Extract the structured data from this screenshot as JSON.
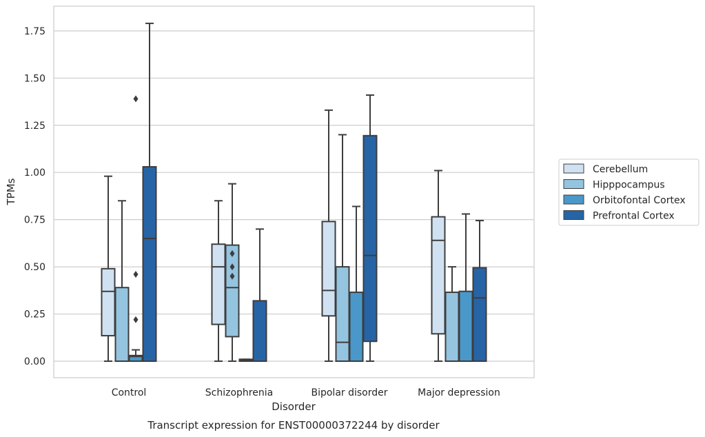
{
  "chart_data": {
    "type": "box",
    "caption": "Transcript expression for ENST00000372244 by disorder",
    "xlabel": "Disorder",
    "ylabel": "TPMs",
    "ylim": [
      -0.085,
      1.88
    ],
    "yticks": [
      0.0,
      0.25,
      0.5,
      0.75,
      1.0,
      1.25,
      1.5,
      1.75
    ],
    "ytick_labels": [
      "0.00",
      "0.25",
      "0.50",
      "0.75",
      "1.00",
      "1.25",
      "1.50",
      "1.75"
    ],
    "grid": "horizontal",
    "legend_position": "right, outside",
    "categories": [
      "Control",
      "Schizophrenia",
      "Bipolar disorder",
      "Major depression"
    ],
    "series": [
      {
        "name": "Cerebellum",
        "color": "#d0e1f2",
        "boxes": [
          {
            "whislo": 0.0,
            "q1": 0.135,
            "med": 0.37,
            "q3": 0.49,
            "whishi": 0.98,
            "fliers": []
          },
          {
            "whislo": 0.0,
            "q1": 0.195,
            "med": 0.5,
            "q3": 0.62,
            "whishi": 0.85,
            "fliers": []
          },
          {
            "whislo": 0.0,
            "q1": 0.24,
            "med": 0.375,
            "q3": 0.74,
            "whishi": 1.33,
            "fliers": []
          },
          {
            "whislo": 0.0,
            "q1": 0.145,
            "med": 0.64,
            "q3": 0.765,
            "whishi": 1.01,
            "fliers": []
          }
        ]
      },
      {
        "name": "Hipppocampus",
        "color": "#94c4df",
        "boxes": [
          {
            "whislo": 0.0,
            "q1": 0.0,
            "med": 0.0,
            "q3": 0.39,
            "whishi": 0.85,
            "fliers": []
          },
          {
            "whislo": 0.0,
            "q1": 0.13,
            "med": 0.39,
            "q3": 0.615,
            "whishi": 0.94,
            "fliers": [
              0.57,
              0.5,
              0.45
            ]
          },
          {
            "whislo": 0.0,
            "q1": 0.0,
            "med": 0.1,
            "q3": 0.5,
            "whishi": 1.2,
            "fliers": []
          },
          {
            "whislo": 0.0,
            "q1": 0.0,
            "med": 0.0,
            "q3": 0.365,
            "whishi": 0.5,
            "fliers": []
          }
        ]
      },
      {
        "name": "Orbitofontal Cortex",
        "color": "#4a98c9",
        "boxes": [
          {
            "whislo": 0.0,
            "q1": 0.0,
            "med": 0.025,
            "q3": 0.03,
            "whishi": 0.06,
            "fliers": [
              1.39,
              0.46,
              0.22
            ]
          },
          {
            "whislo": 0.0,
            "q1": 0.0,
            "med": 0.005,
            "q3": 0.01,
            "whishi": 0.01,
            "fliers": []
          },
          {
            "whislo": 0.0,
            "q1": 0.0,
            "med": 0.0,
            "q3": 0.365,
            "whishi": 0.82,
            "fliers": []
          },
          {
            "whislo": 0.0,
            "q1": 0.0,
            "med": 0.0,
            "q3": 0.37,
            "whishi": 0.78,
            "fliers": []
          }
        ]
      },
      {
        "name": "Prefrontal Cortex",
        "color": "#2764a6",
        "boxes": [
          {
            "whislo": 0.0,
            "q1": 0.0,
            "med": 0.65,
            "q3": 1.03,
            "whishi": 1.79,
            "fliers": []
          },
          {
            "whislo": 0.0,
            "q1": 0.0,
            "med": 0.0,
            "q3": 0.32,
            "whishi": 0.7,
            "fliers": []
          },
          {
            "whislo": 0.0,
            "q1": 0.105,
            "med": 0.56,
            "q3": 1.195,
            "whishi": 1.41,
            "fliers": []
          },
          {
            "whislo": 0.0,
            "q1": 0.0,
            "med": 0.335,
            "q3": 0.495,
            "whishi": 0.745,
            "fliers": []
          }
        ]
      }
    ]
  }
}
